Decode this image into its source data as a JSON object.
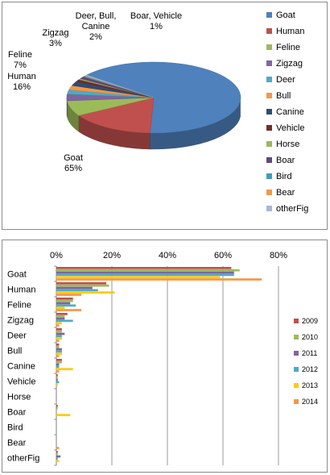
{
  "colors": {
    "categories": [
      "#4f81bd",
      "#c0504d",
      "#9bbb59",
      "#8064a2",
      "#4bacc6",
      "#f79646",
      "#2c4d75",
      "#772c2a",
      "#97b85b",
      "#5f4a7f",
      "#3e9fbd",
      "#f29a41",
      "#a5b8d4"
    ],
    "years": [
      "#c0504d",
      "#9bbb59",
      "#8064a2",
      "#4bacc6",
      "#ffcc00",
      "#f79646"
    ]
  },
  "chart_data": [
    {
      "type": "pie",
      "title": "",
      "categories": [
        "Goat",
        "Human",
        "Feline",
        "Zigzag",
        "Deer",
        "Bull",
        "Canine",
        "Vehicle",
        "Horse",
        "Boar",
        "Bird",
        "Bear",
        "otherFig"
      ],
      "values": [
        65,
        16,
        7,
        3,
        2,
        2,
        2,
        1,
        0.5,
        1,
        0.3,
        0.2,
        0.5
      ],
      "data_labels": [
        {
          "text": "Goat\n65%",
          "cats": [
            "Goat"
          ]
        },
        {
          "text": "Human\n16%",
          "cats": [
            "Human"
          ]
        },
        {
          "text": "Feline\n7%",
          "cats": [
            "Feline"
          ]
        },
        {
          "text": "Zigzag\n3%",
          "cats": [
            "Zigzag"
          ]
        },
        {
          "text": "Deer, Bull,\nCanine\n2%",
          "cats": [
            "Deer",
            "Bull",
            "Canine"
          ]
        },
        {
          "text": "Boar, Vehicle\n1%",
          "cats": [
            "Boar",
            "Vehicle"
          ]
        }
      ],
      "legend": "right"
    },
    {
      "type": "bar",
      "orientation": "horizontal",
      "title": "",
      "categories": [
        "Goat",
        "Human",
        "Feline",
        "Zigzag",
        "Deer",
        "Bull",
        "Canine",
        "Vehicle",
        "Horse",
        "Boar",
        "Bird",
        "Bear",
        "otherFig"
      ],
      "xlim": [
        0,
        80
      ],
      "xticks": [
        "0%",
        "20%",
        "40%",
        "60%",
        "80%"
      ],
      "legend": "right",
      "grid": true,
      "series": [
        {
          "name": "2009",
          "values": [
            63,
            18,
            6,
            4,
            2,
            1,
            2,
            0.5,
            0,
            0.5,
            0,
            0,
            0.5
          ]
        },
        {
          "name": "2010",
          "values": [
            66,
            19,
            6,
            3,
            2,
            1,
            2,
            0.5,
            0,
            0.5,
            0,
            0,
            0.5
          ]
        },
        {
          "name": "2011",
          "values": [
            64,
            13,
            5,
            3,
            3,
            2,
            1,
            0.5,
            0,
            0,
            0,
            0,
            1.5
          ]
        },
        {
          "name": "2012",
          "values": [
            64,
            15,
            7,
            6,
            2,
            2,
            1,
            1,
            0,
            0,
            0,
            0,
            0.5
          ]
        },
        {
          "name": "2013",
          "values": [
            59,
            21,
            3,
            2,
            2,
            2,
            6,
            0.5,
            0,
            5,
            0,
            0,
            1
          ]
        },
        {
          "name": "2014",
          "values": [
            74,
            9,
            9,
            1,
            1,
            1,
            1,
            0,
            0,
            0,
            0,
            1,
            0
          ]
        }
      ]
    }
  ]
}
